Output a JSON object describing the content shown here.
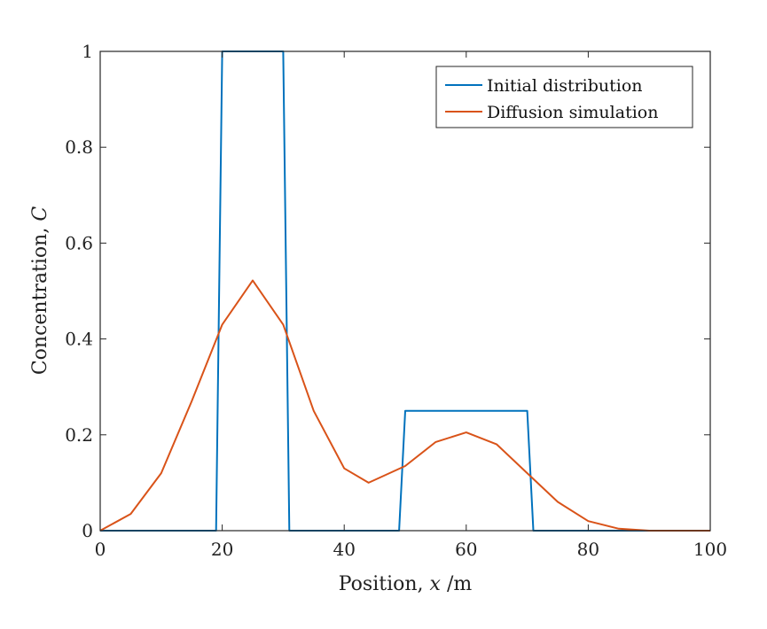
{
  "chart_data": {
    "type": "line",
    "xlabel": {
      "prefix": "Position, ",
      "var": "x",
      "suffix": " /m"
    },
    "ylabel": {
      "prefix": "Concentration, ",
      "var": "C"
    },
    "xlim": [
      0,
      100
    ],
    "ylim": [
      0,
      1
    ],
    "xticks": [
      0,
      20,
      40,
      60,
      80,
      100
    ],
    "yticks": [
      0,
      0.2,
      0.4,
      0.6,
      0.8,
      1
    ],
    "xtick_labels": [
      "0",
      "20",
      "40",
      "60",
      "80",
      "100"
    ],
    "ytick_labels": [
      "0",
      "0.2",
      "0.4",
      "0.6",
      "0.8",
      "1"
    ],
    "grid": false,
    "legend_position": "top-right",
    "series": [
      {
        "name": "Initial distribution",
        "color": "#0072BD",
        "x": [
          0,
          19,
          20,
          30,
          31,
          49,
          50,
          70,
          71,
          100
        ],
        "y": [
          0,
          0,
          1,
          1,
          0,
          0,
          0.25,
          0.25,
          0,
          0
        ]
      },
      {
        "name": "Diffusion simulation",
        "color": "#D95319",
        "x": [
          0,
          5,
          10,
          15,
          20,
          25,
          30,
          35,
          40,
          44,
          50,
          55,
          60,
          65,
          70,
          75,
          80,
          85,
          90,
          95,
          100
        ],
        "y": [
          0,
          0.035,
          0.12,
          0.27,
          0.43,
          0.522,
          0.43,
          0.25,
          0.13,
          0.1,
          0.135,
          0.185,
          0.205,
          0.18,
          0.12,
          0.06,
          0.02,
          0.004,
          0,
          0,
          0
        ]
      }
    ]
  }
}
